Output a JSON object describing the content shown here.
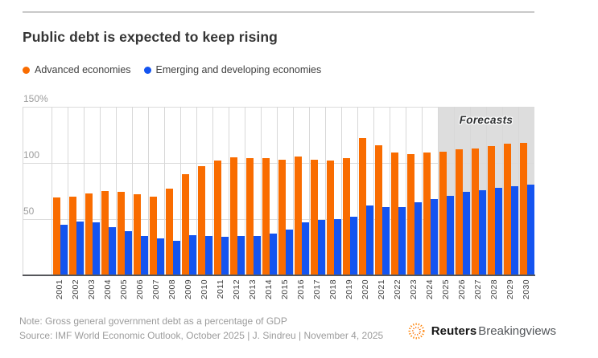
{
  "header": {
    "title": "Public debt is expected to keep rising"
  },
  "legend": [
    {
      "label": "Advanced economies"
    },
    {
      "label": "Emerging and developing economies"
    }
  ],
  "chart_data": {
    "type": "bar",
    "title": "Public debt is expected to keep rising",
    "categories": [
      "2001",
      "2002",
      "2003",
      "2004",
      "2005",
      "2006",
      "2007",
      "2008",
      "2009",
      "2010",
      "2011",
      "2012",
      "2013",
      "2014",
      "2015",
      "2016",
      "2017",
      "2018",
      "2019",
      "2020",
      "2021",
      "2022",
      "2023",
      "2024",
      "2025",
      "2026",
      "2027",
      "2028",
      "2029",
      "2030"
    ],
    "series": [
      {
        "name": "Advanced economies",
        "color": "#F96C00",
        "values": [
          69,
          70,
          73,
          75,
          74,
          72,
          70,
          77,
          90,
          97,
          102,
          105,
          104,
          104,
          103,
          106,
          103,
          102,
          104,
          122,
          116,
          109,
          108,
          109,
          110,
          112,
          113,
          115,
          117,
          118
        ]
      },
      {
        "name": "Emerging and developing economies",
        "color": "#1454F0",
        "values": [
          45,
          48,
          47,
          43,
          39,
          35,
          33,
          31,
          36,
          35,
          34,
          35,
          35,
          37,
          41,
          47,
          49,
          50,
          52,
          62,
          61,
          61,
          65,
          68,
          71,
          74,
          76,
          78,
          79,
          81
        ]
      }
    ],
    "unit": "percent of GDP",
    "ylim": [
      0,
      150
    ],
    "y_tick_labels": [
      "150%",
      "100",
      "50"
    ],
    "grid": true,
    "legend_position": "top-left",
    "forecast_start_year": "2025",
    "forecast_label": "Forecasts"
  },
  "footer": {
    "note": "Note: Gross general government debt as a percentage of GDP",
    "source": "Source: IMF World Economic Outlook, October 2025 | J. Sindreu | November 4, 2025",
    "brand_bold": "Reuters",
    "brand_regular": "Breakingviews"
  }
}
